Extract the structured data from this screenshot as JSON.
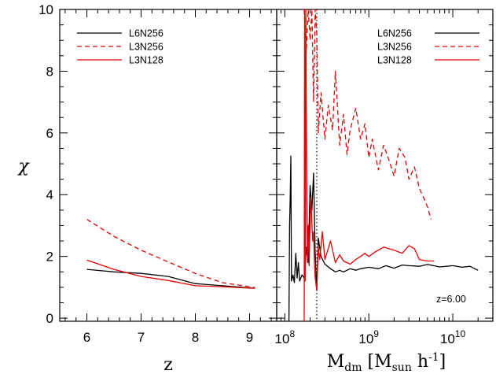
{
  "chart_data": [
    {
      "type": "line",
      "xlabel": "z",
      "ylabel": "χ",
      "xlim": [
        5.5,
        9.5
      ],
      "ylim": [
        -0.1,
        10
      ],
      "xticks": [
        6,
        7,
        8,
        9
      ],
      "yticks": [
        0,
        2,
        4,
        6,
        8,
        10
      ],
      "legend": {
        "position": "top-left"
      },
      "series": [
        {
          "name": "L6N256",
          "color": "#000000",
          "dash": "solid",
          "x": [
            6.0,
            6.5,
            7.0,
            7.5,
            8.0,
            8.5,
            9.0,
            9.1
          ],
          "y": [
            1.58,
            1.5,
            1.45,
            1.35,
            1.12,
            1.05,
            0.98,
            0.97
          ]
        },
        {
          "name": "L3N256",
          "color": "#e60000",
          "dash": "dashed",
          "x": [
            6.0,
            6.5,
            7.0,
            7.5,
            8.0,
            8.5,
            9.0,
            9.1
          ],
          "y": [
            3.2,
            2.65,
            2.2,
            1.82,
            1.45,
            1.15,
            1.02,
            0.99
          ]
        },
        {
          "name": "L3N128",
          "color": "#e60000",
          "dash": "solid",
          "x": [
            6.0,
            6.5,
            7.0,
            7.5,
            8.0,
            8.5,
            9.0,
            9.1
          ],
          "y": [
            1.88,
            1.58,
            1.35,
            1.22,
            1.05,
            1.02,
            0.97,
            0.97
          ]
        }
      ]
    },
    {
      "type": "line",
      "xlabel": "M_dm [M_sun h^-1]",
      "ylabel": "",
      "xscale": "log",
      "xlim": [
        80000000,
        30000000000
      ],
      "ylim": [
        -0.1,
        10
      ],
      "xtick_labels": [
        "10^8",
        "10^9",
        "10^10"
      ],
      "xticks": [
        100000000,
        1000000000,
        10000000000
      ],
      "yticks": [
        0,
        2,
        4,
        6,
        8,
        10
      ],
      "legend": {
        "position": "top-right"
      },
      "annotation": "z=6.00",
      "vline": {
        "x": 240000000,
        "style": "dotted"
      },
      "series": [
        {
          "name": "L6N256",
          "color": "#000000",
          "dash": "solid",
          "x": [
            112000000,
            114000000,
            116000000,
            118000000,
            120000000,
            125000000,
            130000000,
            135000000,
            140000000,
            145000000,
            150000000,
            160000000,
            170000000,
            180000000,
            190000000,
            200000000,
            210000000,
            220000000,
            230000000,
            240000000,
            250000000,
            270000000,
            300000000,
            350000000,
            400000000,
            450000000,
            500000000,
            600000000,
            700000000,
            800000000,
            1000000000,
            1300000000,
            1600000000,
            2000000000,
            2500000000,
            3000000000,
            4000000000,
            5000000000,
            7000000000,
            10000000000,
            13000000000,
            16000000000,
            20000000000
          ],
          "y": [
            -0.1,
            3.0,
            3.9,
            5.25,
            1.2,
            1.4,
            1.15,
            2.1,
            1.3,
            1.8,
            1.2,
            1.4,
            1.3,
            2.3,
            1.8,
            4.3,
            3.5,
            4.7,
            2.1,
            0.9,
            2.6,
            2.0,
            1.75,
            1.6,
            1.5,
            1.55,
            1.5,
            1.6,
            1.55,
            1.6,
            1.65,
            1.6,
            1.7,
            1.62,
            1.72,
            1.7,
            1.68,
            1.74,
            1.66,
            1.7,
            1.65,
            1.68,
            1.55
          ]
        },
        {
          "name": "L3N256",
          "color": "#e60000",
          "dash": "dashed",
          "x": [
            170000000,
            180000000,
            190000000,
            200000000,
            210000000,
            220000000,
            230000000,
            240000000,
            250000000,
            270000000,
            300000000,
            330000000,
            370000000,
            400000000,
            450000000,
            500000000,
            550000000,
            600000000,
            700000000,
            800000000,
            900000000,
            1000000000,
            1100000000,
            1300000000,
            1500000000,
            1700000000,
            2000000000,
            2300000000,
            2700000000,
            3000000000,
            3500000000,
            4000000000,
            4500000000,
            5000000000,
            5500000000
          ],
          "y": [
            10,
            8.6,
            10,
            9.0,
            10,
            7.0,
            10,
            9.2,
            6.0,
            7.3,
            5.8,
            6.9,
            6.1,
            8.0,
            5.6,
            6.6,
            5.3,
            6.1,
            6.8,
            5.8,
            6.3,
            5.2,
            5.8,
            4.8,
            5.6,
            5.2,
            4.6,
            5.5,
            5.2,
            4.5,
            4.9,
            4.2,
            3.9,
            3.6,
            3.2
          ]
        },
        {
          "name": "L3N128",
          "color": "#e60000",
          "dash": "solid",
          "x": [
            170000000,
            172000000,
            175000000,
            178000000,
            182000000,
            186000000,
            190000000,
            195000000,
            200000000,
            205000000,
            210000000,
            215000000,
            220000000,
            225000000,
            230000000,
            240000000,
            250000000,
            260000000,
            280000000,
            300000000,
            350000000,
            400000000,
            450000000,
            500000000,
            600000000,
            700000000,
            800000000,
            900000000,
            1000000000,
            1200000000,
            1500000000,
            2000000000,
            2500000000,
            3000000000,
            3500000000,
            4000000000,
            5000000000,
            6000000000
          ],
          "y": [
            -0.1,
            10,
            1.2,
            10,
            4.8,
            1.8,
            3.0,
            1.7,
            3.2,
            3.9,
            3.0,
            2.5,
            2.8,
            1.8,
            1.3,
            0.9,
            2.3,
            1.9,
            2.8,
            1.9,
            2.5,
            1.8,
            2.05,
            1.85,
            1.75,
            1.9,
            2.0,
            2.1,
            2.0,
            2.15,
            2.3,
            2.2,
            2.1,
            2.35,
            2.25,
            1.9,
            1.85,
            1.85
          ]
        }
      ]
    }
  ]
}
